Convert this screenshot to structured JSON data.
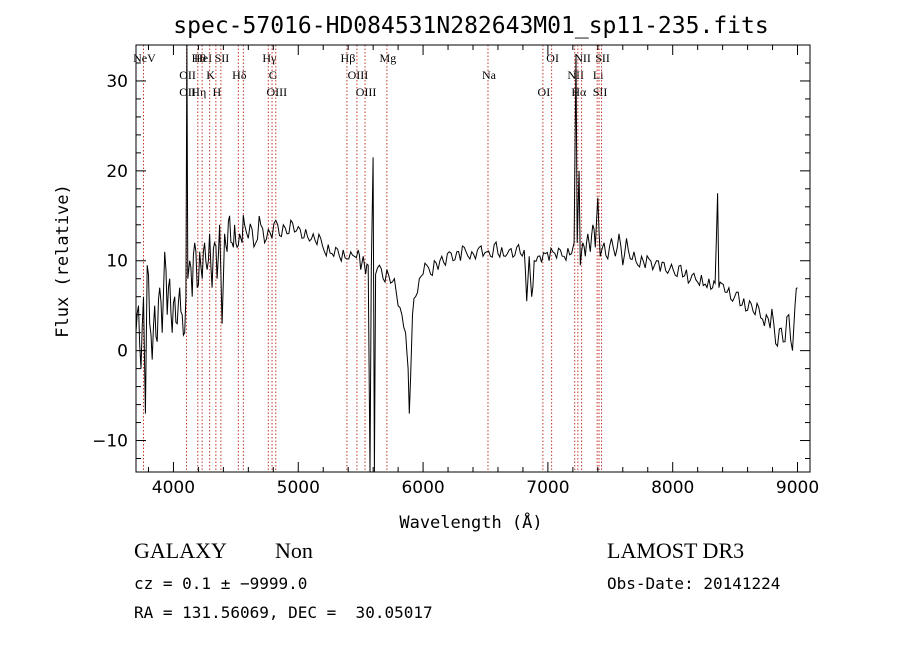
{
  "chart_data": {
    "type": "line",
    "title": "spec-57016-HD084531N282643M01_sp11-235.fits",
    "xlabel": "Wavelength (Å)",
    "ylabel": "Flux (relative)",
    "xlim": [
      3700,
      9100
    ],
    "ylim": [
      -13.5,
      34
    ],
    "xticks": [
      4000,
      5000,
      6000,
      7000,
      8000,
      9000
    ],
    "yticks": [
      -10,
      0,
      10,
      20,
      30
    ],
    "minor_x_step": 200,
    "minor_y_step": 2,
    "grid": false,
    "line_color": "#000000",
    "marker_color": "#c0392b",
    "series": [
      {
        "values": [
          {
            "x": 3700,
            "y": 2
          },
          {
            "x": 3720,
            "y": 5
          },
          {
            "x": 3740,
            "y": -2
          },
          {
            "x": 3760,
            "y": 6
          },
          {
            "x": 3775,
            "y": -7
          },
          {
            "x": 3790,
            "y": 9.5
          },
          {
            "x": 3810,
            "y": 3
          },
          {
            "x": 3830,
            "y": -1
          },
          {
            "x": 3850,
            "y": 5
          },
          {
            "x": 3870,
            "y": 1
          },
          {
            "x": 3890,
            "y": 7
          },
          {
            "x": 3910,
            "y": 2
          },
          {
            "x": 3930,
            "y": 11
          },
          {
            "x": 3950,
            "y": 4
          },
          {
            "x": 3970,
            "y": 8
          },
          {
            "x": 3990,
            "y": 2
          },
          {
            "x": 4010,
            "y": 6
          },
          {
            "x": 4030,
            "y": 3
          },
          {
            "x": 4050,
            "y": 7
          },
          {
            "x": 4070,
            "y": 4
          },
          {
            "x": 4090,
            "y": 2
          },
          {
            "x": 4100,
            "y": 6
          },
          {
            "x": 4108,
            "y": 35
          },
          {
            "x": 4115,
            "y": 8
          },
          {
            "x": 4130,
            "y": 10
          },
          {
            "x": 4150,
            "y": 6
          },
          {
            "x": 4170,
            "y": 12
          },
          {
            "x": 4190,
            "y": 7
          },
          {
            "x": 4210,
            "y": 11
          },
          {
            "x": 4230,
            "y": 8
          },
          {
            "x": 4250,
            "y": 12
          },
          {
            "x": 4270,
            "y": 9
          },
          {
            "x": 4290,
            "y": 13
          },
          {
            "x": 4310,
            "y": 7
          },
          {
            "x": 4330,
            "y": 12
          },
          {
            "x": 4350,
            "y": 8
          },
          {
            "x": 4370,
            "y": 14
          },
          {
            "x": 4390,
            "y": 3
          },
          {
            "x": 4410,
            "y": 13
          },
          {
            "x": 4430,
            "y": 11
          },
          {
            "x": 4450,
            "y": 15
          },
          {
            "x": 4470,
            "y": 12
          },
          {
            "x": 4490,
            "y": 14
          },
          {
            "x": 4510,
            "y": 11.5
          },
          {
            "x": 4530,
            "y": 13
          },
          {
            "x": 4550,
            "y": 12
          },
          {
            "x": 4570,
            "y": 14
          },
          {
            "x": 4600,
            "y": 12.5
          },
          {
            "x": 4630,
            "y": 13.5
          },
          {
            "x": 4660,
            "y": 12
          },
          {
            "x": 4700,
            "y": 14
          },
          {
            "x": 4730,
            "y": 12
          },
          {
            "x": 4760,
            "y": 13.5
          },
          {
            "x": 4790,
            "y": 12.5
          },
          {
            "x": 4820,
            "y": 14.5
          },
          {
            "x": 4850,
            "y": 12.8
          },
          {
            "x": 4880,
            "y": 14
          },
          {
            "x": 4910,
            "y": 13
          },
          {
            "x": 4940,
            "y": 14.5
          },
          {
            "x": 4970,
            "y": 13.2
          },
          {
            "x": 5000,
            "y": 13.8
          },
          {
            "x": 5030,
            "y": 12.5
          },
          {
            "x": 5060,
            "y": 13.5
          },
          {
            "x": 5090,
            "y": 12.2
          },
          {
            "x": 5120,
            "y": 13
          },
          {
            "x": 5150,
            "y": 11.8
          },
          {
            "x": 5180,
            "y": 12.5
          },
          {
            "x": 5210,
            "y": 11
          },
          {
            "x": 5240,
            "y": 11.8
          },
          {
            "x": 5270,
            "y": 10.8
          },
          {
            "x": 5300,
            "y": 11.5
          },
          {
            "x": 5330,
            "y": 10.5
          },
          {
            "x": 5360,
            "y": 11.2
          },
          {
            "x": 5390,
            "y": 10.2
          },
          {
            "x": 5420,
            "y": 11
          },
          {
            "x": 5450,
            "y": 10.5
          },
          {
            "x": 5480,
            "y": 11.2
          },
          {
            "x": 5500,
            "y": 9
          },
          {
            "x": 5520,
            "y": 10.5
          },
          {
            "x": 5540,
            "y": 8.5
          },
          {
            "x": 5560,
            "y": 9.5
          },
          {
            "x": 5575,
            "y": -13.5
          },
          {
            "x": 5585,
            "y": 9
          },
          {
            "x": 5600,
            "y": 21.5
          },
          {
            "x": 5610,
            "y": -13.5
          },
          {
            "x": 5620,
            "y": 8.5
          },
          {
            "x": 5650,
            "y": 9.5
          },
          {
            "x": 5680,
            "y": 8
          },
          {
            "x": 5710,
            "y": 9
          },
          {
            "x": 5740,
            "y": 7.5
          },
          {
            "x": 5770,
            "y": 8
          },
          {
            "x": 5800,
            "y": 5
          },
          {
            "x": 5830,
            "y": 4
          },
          {
            "x": 5860,
            "y": 2
          },
          {
            "x": 5880,
            "y": -2
          },
          {
            "x": 5890,
            "y": -7
          },
          {
            "x": 5900,
            "y": -3
          },
          {
            "x": 5915,
            "y": 4
          },
          {
            "x": 5940,
            "y": 6
          },
          {
            "x": 5970,
            "y": 8
          },
          {
            "x": 6000,
            "y": 8.5
          },
          {
            "x": 6030,
            "y": 9.5
          },
          {
            "x": 6060,
            "y": 8.5
          },
          {
            "x": 6090,
            "y": 10
          },
          {
            "x": 6120,
            "y": 9
          },
          {
            "x": 6150,
            "y": 10.5
          },
          {
            "x": 6180,
            "y": 9.5
          },
          {
            "x": 6210,
            "y": 11
          },
          {
            "x": 6240,
            "y": 10
          },
          {
            "x": 6270,
            "y": 11
          },
          {
            "x": 6300,
            "y": 10
          },
          {
            "x": 6330,
            "y": 11.5
          },
          {
            "x": 6360,
            "y": 10.5
          },
          {
            "x": 6390,
            "y": 11
          },
          {
            "x": 6420,
            "y": 10.2
          },
          {
            "x": 6450,
            "y": 11.5
          },
          {
            "x": 6480,
            "y": 10.5
          },
          {
            "x": 6510,
            "y": 11
          },
          {
            "x": 6540,
            "y": 10.5
          },
          {
            "x": 6570,
            "y": 11.8
          },
          {
            "x": 6600,
            "y": 10.8
          },
          {
            "x": 6630,
            "y": 11.5
          },
          {
            "x": 6660,
            "y": 10.5
          },
          {
            "x": 6690,
            "y": 11.2
          },
          {
            "x": 6720,
            "y": 10.4
          },
          {
            "x": 6750,
            "y": 11.5
          },
          {
            "x": 6780,
            "y": 10.8
          },
          {
            "x": 6810,
            "y": 11.2
          },
          {
            "x": 6830,
            "y": 5.5
          },
          {
            "x": 6850,
            "y": 10.5
          },
          {
            "x": 6870,
            "y": 6
          },
          {
            "x": 6890,
            "y": 10
          },
          {
            "x": 6920,
            "y": 10.5
          },
          {
            "x": 6950,
            "y": 9.8
          },
          {
            "x": 6980,
            "y": 10.8
          },
          {
            "x": 7010,
            "y": 10
          },
          {
            "x": 7040,
            "y": 11
          },
          {
            "x": 7070,
            "y": 10.3
          },
          {
            "x": 7100,
            "y": 11.2
          },
          {
            "x": 7130,
            "y": 10.5
          },
          {
            "x": 7160,
            "y": 11.4
          },
          {
            "x": 7190,
            "y": 10.8
          },
          {
            "x": 7210,
            "y": 12
          },
          {
            "x": 7225,
            "y": 33
          },
          {
            "x": 7235,
            "y": 12
          },
          {
            "x": 7250,
            "y": 20
          },
          {
            "x": 7260,
            "y": 9.5
          },
          {
            "x": 7280,
            "y": 12
          },
          {
            "x": 7300,
            "y": 10.5
          },
          {
            "x": 7320,
            "y": 13
          },
          {
            "x": 7340,
            "y": 11
          },
          {
            "x": 7360,
            "y": 14
          },
          {
            "x": 7380,
            "y": 11.5
          },
          {
            "x": 7400,
            "y": 17
          },
          {
            "x": 7420,
            "y": 10.5
          },
          {
            "x": 7450,
            "y": 12
          },
          {
            "x": 7480,
            "y": 10.2
          },
          {
            "x": 7510,
            "y": 12.5
          },
          {
            "x": 7540,
            "y": 10.5
          },
          {
            "x": 7570,
            "y": 13
          },
          {
            "x": 7600,
            "y": 9.5
          },
          {
            "x": 7630,
            "y": 12.5
          },
          {
            "x": 7660,
            "y": 10.2
          },
          {
            "x": 7690,
            "y": 11
          },
          {
            "x": 7720,
            "y": 9.5
          },
          {
            "x": 7750,
            "y": 10.5
          },
          {
            "x": 7780,
            "y": 9.2
          },
          {
            "x": 7810,
            "y": 10.2
          },
          {
            "x": 7840,
            "y": 9
          },
          {
            "x": 7870,
            "y": 10
          },
          {
            "x": 7900,
            "y": 8.8
          },
          {
            "x": 7930,
            "y": 9.8
          },
          {
            "x": 7960,
            "y": 8.6
          },
          {
            "x": 7990,
            "y": 9.6
          },
          {
            "x": 8020,
            "y": 8.4
          },
          {
            "x": 8050,
            "y": 9.4
          },
          {
            "x": 8080,
            "y": 8.2
          },
          {
            "x": 8110,
            "y": 9
          },
          {
            "x": 8140,
            "y": 7.8
          },
          {
            "x": 8170,
            "y": 8.6
          },
          {
            "x": 8200,
            "y": 7.6
          },
          {
            "x": 8230,
            "y": 8.4
          },
          {
            "x": 8260,
            "y": 7.4
          },
          {
            "x": 8290,
            "y": 8
          },
          {
            "x": 8320,
            "y": 7
          },
          {
            "x": 8340,
            "y": 7.5
          },
          {
            "x": 8360,
            "y": 17.5
          },
          {
            "x": 8370,
            "y": 7
          },
          {
            "x": 8390,
            "y": 7.5
          },
          {
            "x": 8420,
            "y": 6.5
          },
          {
            "x": 8450,
            "y": 7
          },
          {
            "x": 8480,
            "y": 5.5
          },
          {
            "x": 8510,
            "y": 6.5
          },
          {
            "x": 8540,
            "y": 5
          },
          {
            "x": 8570,
            "y": 5.8
          },
          {
            "x": 8600,
            "y": 4.5
          },
          {
            "x": 8630,
            "y": 5.2
          },
          {
            "x": 8660,
            "y": 4
          },
          {
            "x": 8690,
            "y": 4.8
          },
          {
            "x": 8720,
            "y": 3.5
          },
          {
            "x": 8750,
            "y": 4
          },
          {
            "x": 8780,
            "y": 2.5
          },
          {
            "x": 8810,
            "y": 3
          },
          {
            "x": 8840,
            "y": 0.5
          },
          {
            "x": 8870,
            "y": 2.5
          },
          {
            "x": 8900,
            "y": 1
          },
          {
            "x": 8930,
            "y": 4
          },
          {
            "x": 8960,
            "y": 0
          },
          {
            "x": 8980,
            "y": 5
          },
          {
            "x": 9000,
            "y": 7
          }
        ]
      }
    ],
    "line_markers": [
      {
        "x": 3760,
        "labels": [
          "NeV"
        ]
      },
      {
        "x": 4105,
        "labels": [
          "OII",
          "OII"
        ]
      },
      {
        "x": 4195,
        "labels": [
          "Hη",
          "Hθ"
        ]
      },
      {
        "x": 4230,
        "labels": [
          "HeI"
        ]
      },
      {
        "x": 4290,
        "labels": [
          "K"
        ]
      },
      {
        "x": 4340,
        "labels": [
          "H"
        ]
      },
      {
        "x": 4380,
        "labels": [
          "SII"
        ]
      },
      {
        "x": 4520,
        "labels": [
          "Hδ"
        ]
      },
      {
        "x": 4560,
        "labels": []
      },
      {
        "x": 4760,
        "labels": [
          "Hγ"
        ]
      },
      {
        "x": 4790,
        "labels": [
          "G"
        ]
      },
      {
        "x": 4820,
        "labels": [
          "OIII"
        ]
      },
      {
        "x": 5390,
        "labels": [
          "Hβ"
        ]
      },
      {
        "x": 5470,
        "labels": [
          "OIII"
        ]
      },
      {
        "x": 5535,
        "labels": [
          "OIII"
        ]
      },
      {
        "x": 5710,
        "labels": [
          "Mg"
        ]
      },
      {
        "x": 6520,
        "labels": [
          "Na"
        ]
      },
      {
        "x": 6960,
        "labels": [
          "OI"
        ]
      },
      {
        "x": 7030,
        "labels": [
          "OI"
        ]
      },
      {
        "x": 7215,
        "labels": [
          "NII"
        ]
      },
      {
        "x": 7240,
        "labels": [
          "Hα"
        ]
      },
      {
        "x": 7270,
        "labels": [
          "NII"
        ]
      },
      {
        "x": 7395,
        "labels": [
          "Li"
        ]
      },
      {
        "x": 7410,
        "labels": [
          "SII"
        ]
      },
      {
        "x": 7430,
        "labels": [
          "SII"
        ]
      }
    ]
  },
  "info": {
    "class": "GALAXY",
    "subclass": "Non",
    "survey": "LAMOST DR3",
    "cz": "cz = 0.1 ± −9999.0",
    "obs_date": "Obs-Date: 20141224",
    "coords": "RA = 131.56069, DEC =  30.05017"
  }
}
